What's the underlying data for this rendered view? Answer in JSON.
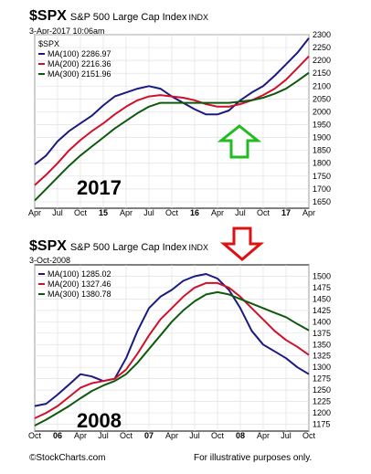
{
  "charts": [
    {
      "symbol": "$SPX",
      "name": "S&P 500 Large Cap Index",
      "exchange": "INDX",
      "date": "3-Apr-2017 10:06am",
      "big_label": "2017",
      "legend_title": "$SPX"
    },
    {
      "symbol": "$SPX",
      "name": "S&P 500 Large Cap Index",
      "exchange": "INDX",
      "date": "3-Oct-2008",
      "big_label": "2008",
      "legend_title": ""
    }
  ],
  "footer": {
    "credit": "©StockCharts.com",
    "note": "For illustrative purposes only."
  },
  "colors": {
    "ma100": "#1a1a80",
    "ma200": "#d0102a",
    "ma300": "#0d5a0d",
    "up_arrow": "#22bb22",
    "down_arrow": "#dd1111"
  },
  "chart_data": [
    {
      "type": "line",
      "xlim": [
        0,
        25
      ],
      "ylim": [
        1625,
        2300
      ],
      "x_ticks": [
        {
          "x": 0,
          "label": "Apr"
        },
        {
          "x": 1,
          "label": "Jul"
        },
        {
          "x": 2,
          "label": "Oct"
        },
        {
          "x": 3,
          "label": "15"
        },
        {
          "x": 4,
          "label": "Apr"
        },
        {
          "x": 5,
          "label": "Jul"
        },
        {
          "x": 6,
          "label": "Oct"
        },
        {
          "x": 7,
          "label": "16"
        },
        {
          "x": 8,
          "label": "Apr"
        },
        {
          "x": 9,
          "label": "Jul"
        },
        {
          "x": 10,
          "label": "Oct"
        },
        {
          "x": 11,
          "label": "17"
        },
        {
          "x": 12,
          "label": "Apr"
        }
      ],
      "bold_ticks": [
        "15",
        "16",
        "17"
      ],
      "y_ticks": [
        1650,
        1700,
        1750,
        1800,
        1850,
        1900,
        1950,
        2000,
        2050,
        2100,
        2150,
        2200,
        2250,
        2300
      ],
      "series": [
        {
          "name": "MA(100) 2286.97",
          "color_key": "ma100",
          "x": [
            0,
            0.5,
            1,
            1.5,
            2,
            2.5,
            3,
            3.5,
            4,
            4.5,
            5,
            5.5,
            6,
            6.5,
            7,
            7.5,
            8,
            8.5,
            9,
            9.5,
            10,
            10.5,
            11,
            11.5,
            12
          ],
          "y": [
            1795,
            1830,
            1885,
            1925,
            1955,
            1985,
            2025,
            2060,
            2075,
            2090,
            2100,
            2090,
            2060,
            2035,
            2010,
            1990,
            1990,
            2005,
            2045,
            2075,
            2100,
            2140,
            2185,
            2230,
            2287
          ]
        },
        {
          "name": "MA(200) 2216.36",
          "color_key": "ma200",
          "x": [
            0,
            0.5,
            1,
            1.5,
            2,
            2.5,
            3,
            3.5,
            4,
            4.5,
            5,
            5.5,
            6,
            6.5,
            7,
            7.5,
            8,
            8.5,
            9,
            9.5,
            10,
            10.5,
            11,
            11.5,
            12
          ],
          "y": [
            1715,
            1755,
            1800,
            1850,
            1890,
            1925,
            1955,
            1990,
            2020,
            2045,
            2060,
            2065,
            2060,
            2055,
            2045,
            2030,
            2020,
            2020,
            2030,
            2045,
            2065,
            2090,
            2125,
            2170,
            2216
          ]
        },
        {
          "name": "MA(300) 2151.96",
          "color_key": "ma300",
          "x": [
            0,
            0.5,
            1,
            1.5,
            2,
            2.5,
            3,
            3.5,
            4,
            4.5,
            5,
            5.5,
            6,
            6.5,
            7,
            7.5,
            8,
            8.5,
            9,
            9.5,
            10,
            10.5,
            11,
            11.5,
            12
          ],
          "y": [
            1655,
            1700,
            1745,
            1790,
            1830,
            1865,
            1900,
            1935,
            1965,
            1995,
            2020,
            2035,
            2035,
            2035,
            2035,
            2035,
            2035,
            2035,
            2040,
            2045,
            2055,
            2070,
            2090,
            2120,
            2152
          ]
        }
      ]
    },
    {
      "type": "line",
      "xlim": [
        0,
        24
      ],
      "ylim": [
        1160,
        1525
      ],
      "x_ticks": [
        {
          "x": 0,
          "label": "Oct"
        },
        {
          "x": 1,
          "label": "06"
        },
        {
          "x": 2,
          "label": "Apr"
        },
        {
          "x": 3,
          "label": "Jul"
        },
        {
          "x": 4,
          "label": "Oct"
        },
        {
          "x": 5,
          "label": "07"
        },
        {
          "x": 6,
          "label": "Apr"
        },
        {
          "x": 7,
          "label": "Jul"
        },
        {
          "x": 8,
          "label": "Oct"
        },
        {
          "x": 9,
          "label": "08"
        },
        {
          "x": 10,
          "label": "Apr"
        },
        {
          "x": 11,
          "label": "Jul"
        },
        {
          "x": 12,
          "label": "Oct"
        }
      ],
      "bold_ticks": [
        "06",
        "07",
        "08"
      ],
      "y_ticks": [
        1175,
        1200,
        1225,
        1250,
        1275,
        1300,
        1325,
        1350,
        1375,
        1400,
        1425,
        1450,
        1475,
        1500
      ],
      "series": [
        {
          "name": "MA(100) 1285.02",
          "color_key": "ma100",
          "x": [
            0,
            0.5,
            1,
            1.5,
            2,
            2.5,
            3,
            3.5,
            4,
            4.5,
            5,
            5.5,
            6,
            6.5,
            7,
            7.5,
            8,
            8.5,
            9,
            9.5,
            10,
            10.5,
            11,
            11.5,
            12
          ],
          "y": [
            1215,
            1220,
            1240,
            1262,
            1285,
            1280,
            1270,
            1275,
            1320,
            1380,
            1430,
            1455,
            1470,
            1490,
            1500,
            1505,
            1495,
            1470,
            1430,
            1380,
            1350,
            1335,
            1320,
            1300,
            1285
          ]
        },
        {
          "name": "MA(200) 1327.46",
          "color_key": "ma200",
          "x": [
            0,
            0.5,
            1,
            1.5,
            2,
            2.5,
            3,
            3.5,
            4,
            4.5,
            5,
            5.5,
            6,
            6.5,
            7,
            7.5,
            8,
            8.5,
            9,
            9.5,
            10,
            10.5,
            11,
            11.5,
            12
          ],
          "y": [
            1188,
            1200,
            1215,
            1235,
            1255,
            1265,
            1270,
            1275,
            1295,
            1330,
            1370,
            1405,
            1430,
            1455,
            1475,
            1485,
            1485,
            1475,
            1455,
            1430,
            1405,
            1380,
            1360,
            1345,
            1327
          ]
        },
        {
          "name": "MA(300) 1380.78",
          "color_key": "ma300",
          "x": [
            0,
            0.5,
            1,
            1.5,
            2,
            2.5,
            3,
            3.5,
            4,
            4.5,
            5,
            5.5,
            6,
            6.5,
            7,
            7.5,
            8,
            8.5,
            9,
            9.5,
            10,
            10.5,
            11,
            11.5,
            12
          ],
          "y": [
            1172,
            1185,
            1200,
            1215,
            1232,
            1248,
            1260,
            1270,
            1285,
            1310,
            1340,
            1370,
            1400,
            1425,
            1445,
            1460,
            1465,
            1460,
            1450,
            1440,
            1430,
            1420,
            1410,
            1395,
            1381
          ]
        }
      ]
    }
  ]
}
